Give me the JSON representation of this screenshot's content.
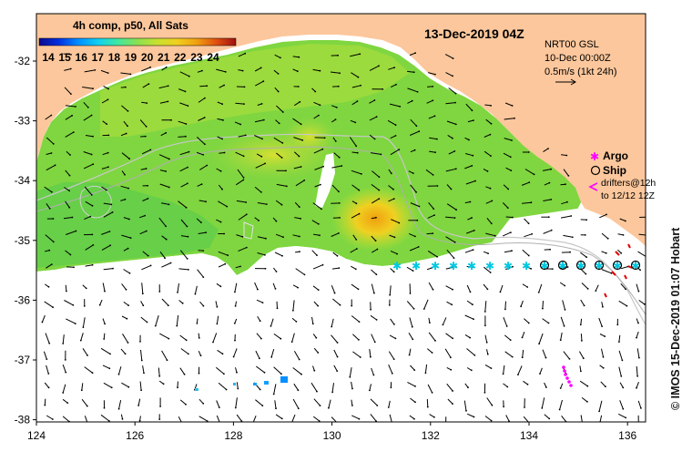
{
  "title": {
    "composite": "4h comp, p50, All Sats",
    "date": "13-Dec-2019 04Z"
  },
  "colorbar": {
    "ticks": [
      "14",
      "15",
      "16",
      "17",
      "18",
      "19",
      "20",
      "21",
      "22",
      "23",
      "24"
    ],
    "colors": [
      "#0a0a8c",
      "#0030e0",
      "#0090ff",
      "#10d0f0",
      "#40e8a0",
      "#8ce050",
      "#c8e030",
      "#f0d020",
      "#f0a010",
      "#e05010",
      "#a01010"
    ]
  },
  "currents": {
    "source": "NRT00 GSL",
    "date": "10-Dec 00:00Z",
    "scale": "0.5m/s (1kt 24h)"
  },
  "legend": {
    "argo": "Argo",
    "ship": "Ship",
    "drifters_line1": "drifters@12h",
    "drifters_line2": "to 12/12 12Z"
  },
  "axes": {
    "x_ticks": [
      "124",
      "126",
      "128",
      "130",
      "132",
      "134",
      "136"
    ],
    "y_ticks": [
      "-32",
      "-33",
      "-34",
      "-35",
      "-36",
      "-37",
      "-38"
    ]
  },
  "credit": "© IMOS 15-Dec-2019 01:07 Hobart",
  "colors": {
    "land": "#fcc79c",
    "ocean": "#ffffff",
    "argo": "#ff00ff",
    "ship_line": "#000000",
    "ship_fill": "#00c8e0",
    "drifter": "#e00000"
  }
}
